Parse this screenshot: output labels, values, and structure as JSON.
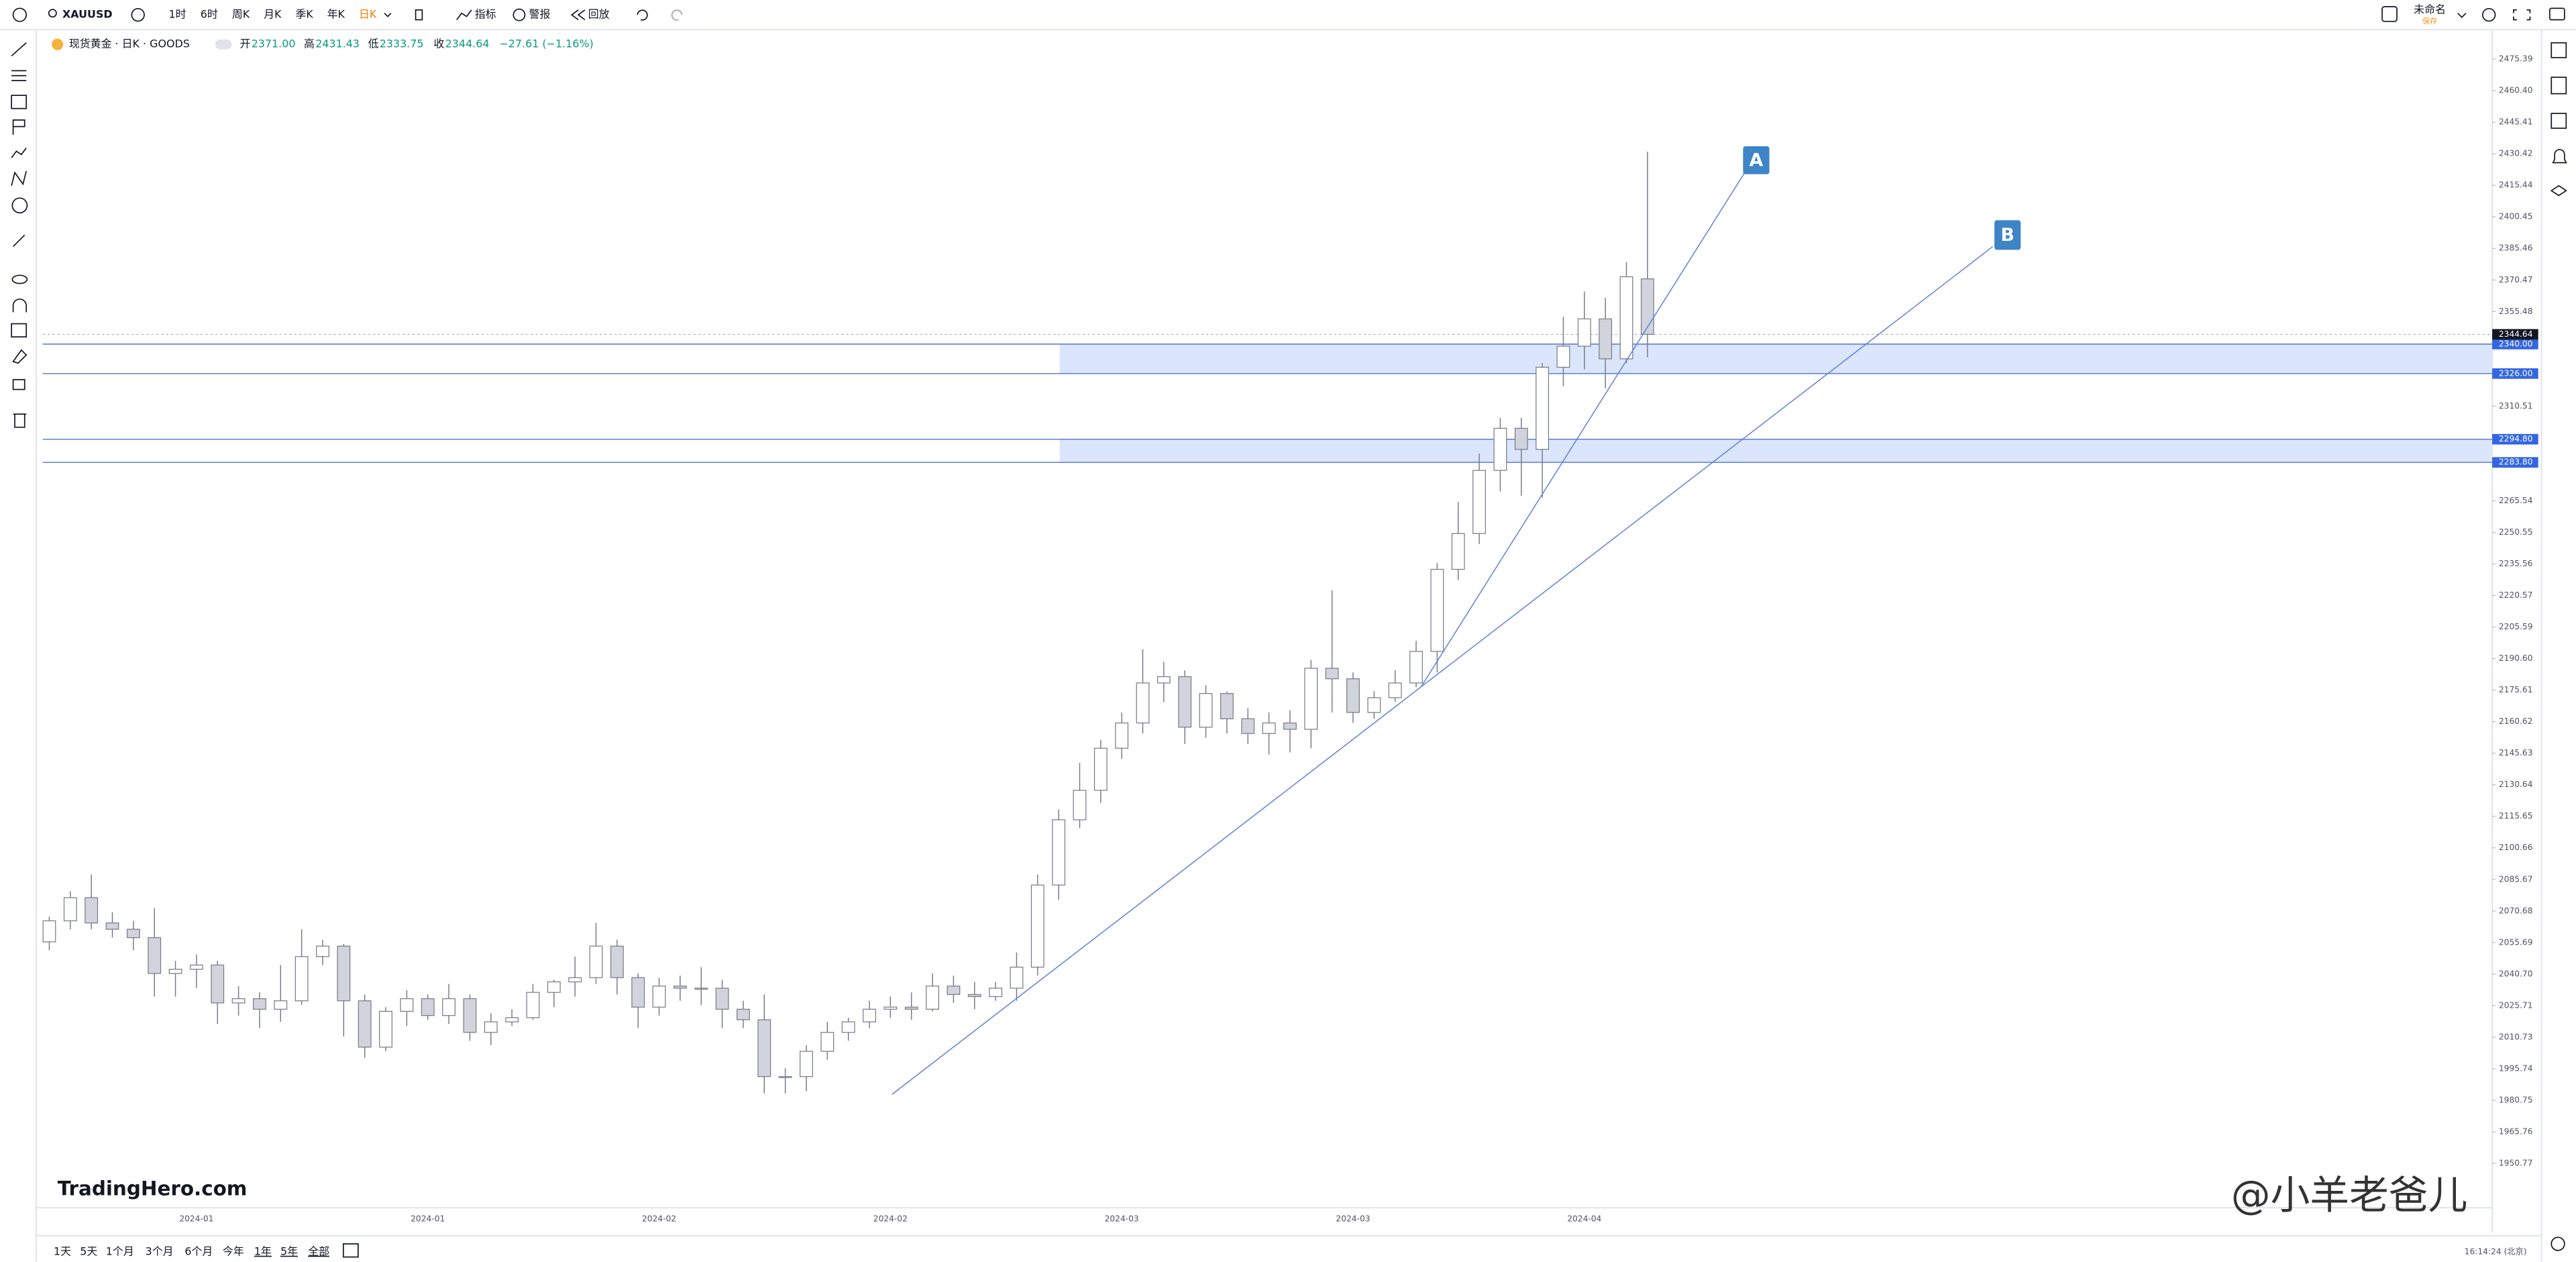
{
  "toolbar": {
    "symbol": "XAUUSD",
    "intervals": [
      "1时",
      "6时",
      "周K",
      "月K",
      "季K",
      "年K",
      "日K"
    ],
    "indicators": "指标",
    "alerts": "警报",
    "replay": "回放",
    "layout_name": "未命名",
    "save": "保存"
  },
  "legend": {
    "title": "现货黄金 · 日K · GOODS",
    "open_label": "开",
    "open": "2371.00",
    "high_label": "高",
    "high": "2431.43",
    "low_label": "低",
    "low": "2333.75",
    "close_label": "收",
    "close": "2344.64",
    "change": "−27.61 (−1.16%)"
  },
  "chart_data": {
    "type": "candlestick",
    "categories": [
      null,
      null,
      null,
      null,
      null,
      null,
      null,
      "2024-01",
      null,
      null,
      null,
      null,
      null,
      null,
      null,
      null,
      null,
      null,
      "2024-01",
      null,
      null,
      null,
      null,
      null,
      null,
      null,
      null,
      null,
      null,
      "2024-02",
      null,
      null,
      null,
      null,
      null,
      null,
      null,
      null,
      null,
      null,
      "2024-02",
      null,
      null,
      null,
      null,
      null,
      null,
      null,
      null,
      null,
      null,
      "2024-03",
      null,
      null,
      null,
      null,
      null,
      null,
      null,
      null,
      null,
      null,
      "2024-03",
      null,
      null,
      null,
      null,
      null,
      null,
      null,
      null,
      null,
      null,
      "2024-04",
      null,
      null,
      null
    ],
    "series": [
      {
        "open": [
          2056,
          2066,
          2077,
          2065,
          2062,
          2058,
          2041,
          2043,
          2045,
          2027,
          2029,
          2024,
          2028,
          2049,
          2054,
          2028,
          2006,
          2023,
          2029,
          2021,
          2029,
          2013,
          2018,
          2020,
          2032,
          2037,
          2039,
          2054,
          2039,
          2025,
          2035,
          2034,
          2034,
          2024,
          2019,
          1992,
          1992,
          2004,
          2013,
          2018,
          2024,
          2025,
          2024,
          2035,
          2031,
          2030,
          2034,
          2044,
          2083,
          2114,
          2128,
          2148,
          2160,
          2179,
          2182,
          2158,
          2174,
          2162,
          2155,
          2160,
          2157,
          2186,
          2181,
          2165,
          2172,
          2179,
          2194,
          2233,
          2250,
          2280,
          2300,
          2290,
          2329,
          2339,
          2352,
          2333,
          2371
        ],
        "high": [
          2068,
          2080,
          2088,
          2070,
          2066,
          2072,
          2047,
          2050,
          2047,
          2035,
          2032,
          2045,
          2062,
          2057,
          2055,
          2031,
          2025,
          2033,
          2031,
          2036,
          2031,
          2022,
          2024,
          2036,
          2038,
          2049,
          2065,
          2057,
          2041,
          2039,
          2040,
          2044,
          2038,
          2028,
          2031,
          1996,
          2007,
          2018,
          2020,
          2028,
          2030,
          2032,
          2041,
          2040,
          2037,
          2037,
          2051,
          2088,
          2119,
          2141,
          2152,
          2165,
          2195,
          2189,
          2185,
          2178,
          2175,
          2167,
          2165,
          2166,
          2190,
          2223,
          2184,
          2175,
          2185,
          2199,
          2236,
          2265,
          2288,
          2305,
          2305,
          2331,
          2353,
          2365,
          2362,
          2379,
          2431.43
        ],
        "low": [
          2052,
          2062,
          2062,
          2058,
          2052,
          2030,
          2030,
          2034,
          2017,
          2021,
          2015,
          2018,
          2026,
          2045,
          2011,
          2001,
          2004,
          2016,
          2019,
          2017,
          2009,
          2007,
          2016,
          2019,
          2025,
          2030,
          2036,
          2031,
          2015,
          2021,
          2028,
          2026,
          2015,
          2015,
          1984,
          1984,
          1985,
          2000,
          2009,
          2015,
          2020,
          2019,
          2023,
          2027,
          2024,
          2028,
          2028,
          2040,
          2076,
          2110,
          2122,
          2143,
          2155,
          2170,
          2150,
          2153,
          2155,
          2150,
          2145,
          2146,
          2148,
          2165,
          2160,
          2162,
          2170,
          2177,
          2184,
          2228,
          2245,
          2270,
          2268,
          2267,
          2320,
          2328,
          2319,
          2331,
          2333.75
        ],
        "close": [
          2066,
          2077,
          2065,
          2062,
          2058,
          2041,
          2043,
          2045,
          2027,
          2029,
          2024,
          2028,
          2049,
          2054,
          2028,
          2006,
          2023,
          2029,
          2021,
          2029,
          2013,
          2018,
          2020,
          2032,
          2037,
          2039,
          2054,
          2039,
          2025,
          2035,
          2034,
          2034,
          2024,
          2019,
          1992,
          1992,
          2004,
          2013,
          2018,
          2024,
          2025,
          2024,
          2035,
          2031,
          2030,
          2034,
          2044,
          2083,
          2114,
          2128,
          2148,
          2160,
          2179,
          2182,
          2158,
          2174,
          2162,
          2155,
          2160,
          2157,
          2186,
          2181,
          2165,
          2172,
          2179,
          2194,
          2233,
          2250,
          2280,
          2300,
          2290,
          2329,
          2339,
          2352,
          2333,
          2372,
          2344.64
        ]
      }
    ],
    "up_color": "#ffffff",
    "down_color": "#d1d4dc",
    "border_color": "#787b86",
    "ylim": [
      1929.7,
      2489.4
    ],
    "yticks": [
      2475.39,
      {
        "value": 2460.4,
        "label": "2460.40"
      },
      2445.41,
      2430.42,
      2415.44,
      2400.45,
      2385.46,
      2370.47,
      2355.48,
      2310.51,
      2265.54,
      2250.55,
      2235.56,
      2220.57,
      2205.59,
      {
        "value": 2190.6,
        "label": "2190.60"
      },
      2175.61,
      2160.62,
      2145.63,
      2130.64,
      2115.65,
      2100.66,
      2085.67,
      2070.68,
      2055.69,
      {
        "value": 2040.7,
        "label": "2040.70"
      },
      2025.71,
      2010.73,
      1995.74,
      1980.75,
      1965.76,
      1950.77
    ],
    "price_levels": [
      {
        "value": 2340,
        "label": "2340.00"
      },
      {
        "value": 2326,
        "label": "2326.00"
      },
      {
        "value": 2294.8,
        "label": "2294.80"
      },
      {
        "value": 2283.8,
        "label": "2283.80"
      }
    ],
    "last_price": {
      "value": 2344.64,
      "label": "2344.64"
    },
    "annotations": [
      "A",
      "B"
    ]
  },
  "bottom_bar": {
    "ranges": [
      "1天",
      "5天",
      "1个月",
      "3个月",
      "6个月",
      "今年",
      "1年",
      "5年",
      "全部"
    ],
    "clock": "16:14:24 (北京)"
  },
  "watermarks": [
    "TradingHero.com",
    "@小羊老爸儿"
  ]
}
